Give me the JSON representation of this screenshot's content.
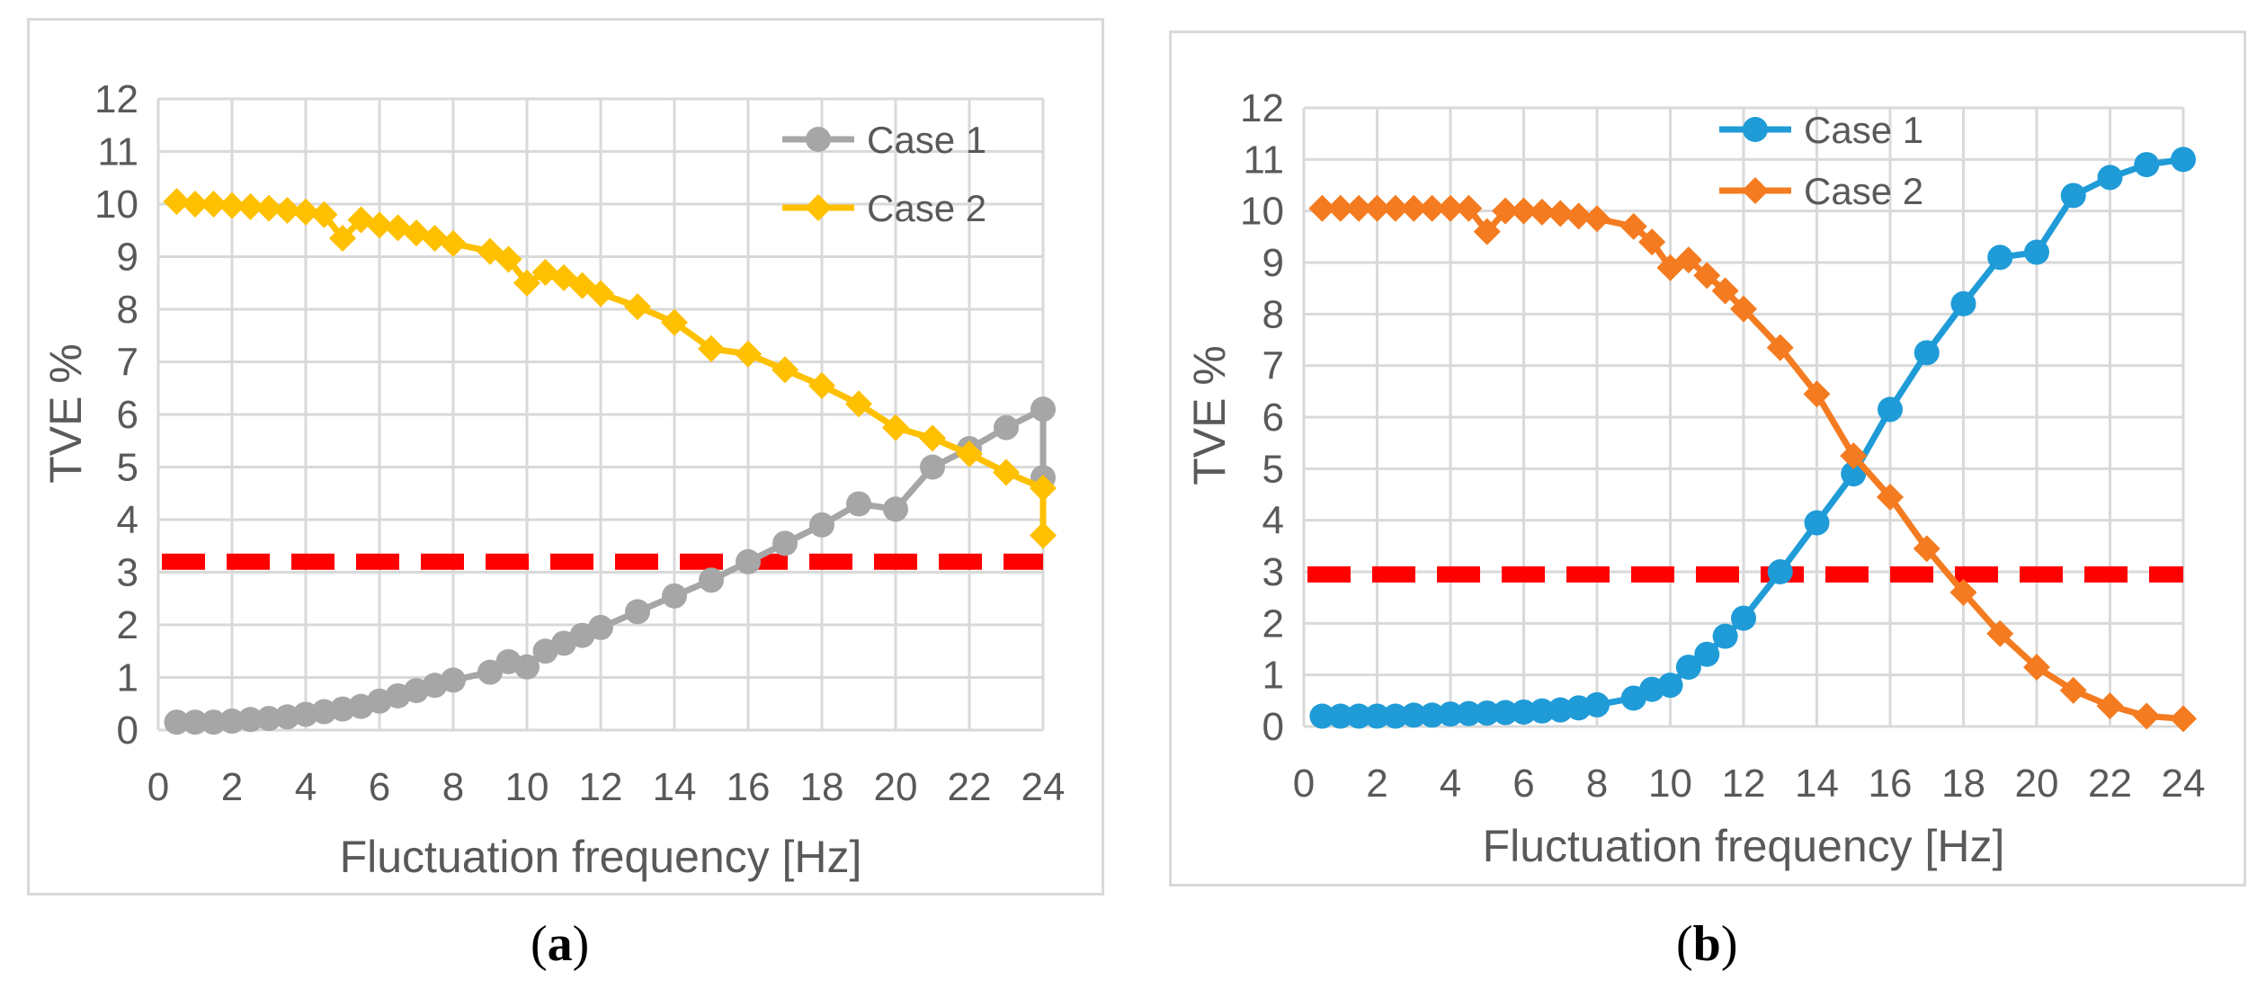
{
  "chart_data": [
    {
      "type": "line",
      "panel_label": "a",
      "xlabel": "Fluctuation frequency [Hz]",
      "ylabel": "TVE %",
      "xlim": [
        0,
        24
      ],
      "ylim": [
        0,
        12
      ],
      "xticks": [
        0,
        2,
        4,
        6,
        8,
        10,
        12,
        14,
        16,
        18,
        20,
        22,
        24
      ],
      "yticks": [
        0,
        1,
        2,
        3,
        4,
        5,
        6,
        7,
        8,
        9,
        10,
        11,
        12
      ],
      "grid": true,
      "legend": "top-right",
      "threshold": 3.2,
      "threshold_color": "#ff0000",
      "series": [
        {
          "name": "Case 1",
          "color": "#a6a6a6",
          "marker": "circle",
          "x": [
            0.5,
            1,
            1.5,
            2,
            2.5,
            3,
            3.5,
            4,
            4.5,
            5,
            5.5,
            6,
            6.5,
            7,
            7.5,
            8,
            9,
            9.5,
            10,
            10.5,
            11,
            11.5,
            12,
            13,
            14,
            15,
            16,
            17,
            18,
            19,
            20,
            21,
            22,
            23,
            24,
            24
          ],
          "y": [
            0.15,
            0.15,
            0.15,
            0.17,
            0.2,
            0.22,
            0.25,
            0.3,
            0.35,
            0.4,
            0.45,
            0.55,
            0.65,
            0.75,
            0.85,
            0.95,
            1.1,
            1.3,
            1.2,
            1.5,
            1.65,
            1.8,
            1.95,
            2.25,
            2.55,
            2.85,
            3.2,
            3.55,
            3.9,
            4.3,
            4.2,
            5.0,
            5.35,
            5.75,
            6.1,
            4.8
          ]
        },
        {
          "name": "Case 2",
          "color": "#ffc000",
          "marker": "diamond",
          "x": [
            0.5,
            1,
            1.5,
            2,
            2.5,
            3,
            3.5,
            4,
            4.5,
            5,
            5.5,
            6,
            6.5,
            7,
            7.5,
            8,
            9,
            9.5,
            10,
            10.5,
            11,
            11.5,
            12,
            13,
            14,
            15,
            16,
            17,
            18,
            19,
            20,
            21,
            22,
            23,
            24,
            24
          ],
          "y": [
            10.05,
            10.0,
            10.0,
            9.97,
            9.95,
            9.92,
            9.88,
            9.85,
            9.8,
            9.35,
            9.7,
            9.6,
            9.55,
            9.45,
            9.35,
            9.25,
            9.1,
            8.95,
            8.5,
            8.7,
            8.6,
            8.45,
            8.3,
            8.05,
            7.75,
            7.25,
            7.15,
            6.85,
            6.55,
            6.2,
            5.75,
            5.55,
            5.25,
            4.9,
            4.6,
            3.7
          ]
        }
      ]
    },
    {
      "type": "line",
      "panel_label": "b",
      "xlabel": "Fluctuation frequency [Hz]",
      "ylabel": "TVE %",
      "xlim": [
        0,
        24
      ],
      "ylim": [
        0,
        12
      ],
      "xticks": [
        0,
        2,
        4,
        6,
        8,
        10,
        12,
        14,
        16,
        18,
        20,
        22,
        24
      ],
      "yticks": [
        0,
        1,
        2,
        3,
        4,
        5,
        6,
        7,
        8,
        9,
        10,
        11,
        12
      ],
      "grid": true,
      "legend": "top",
      "threshold": 2.95,
      "threshold_color": "#ff0000",
      "series": [
        {
          "name": "Case 1",
          "color": "#1f9bd7",
          "marker": "circle",
          "x": [
            0.5,
            1,
            1.5,
            2,
            2.5,
            3,
            3.5,
            4,
            4.5,
            5,
            5.5,
            6,
            6.5,
            7,
            7.5,
            8,
            9,
            9.5,
            10,
            10.5,
            11,
            11.5,
            12,
            13,
            14,
            15,
            16,
            17,
            18,
            19,
            20,
            21,
            22,
            23,
            24
          ],
          "y": [
            0.2,
            0.2,
            0.2,
            0.2,
            0.2,
            0.22,
            0.22,
            0.24,
            0.25,
            0.26,
            0.27,
            0.28,
            0.3,
            0.32,
            0.36,
            0.42,
            0.55,
            0.72,
            0.8,
            1.15,
            1.4,
            1.75,
            2.1,
            3.0,
            3.95,
            4.9,
            6.15,
            7.25,
            8.2,
            9.1,
            9.2,
            10.3,
            10.65,
            10.9,
            11.0
          ]
        },
        {
          "name": "Case 2",
          "color": "#f47b20",
          "marker": "diamond",
          "x": [
            0.5,
            1,
            1.5,
            2,
            2.5,
            3,
            3.5,
            4,
            4.5,
            5,
            5.5,
            6,
            6.5,
            7,
            7.5,
            8,
            9,
            9.5,
            10,
            10.5,
            11,
            11.5,
            12,
            13,
            14,
            15,
            16,
            17,
            18,
            19,
            20,
            21,
            22,
            23,
            24
          ],
          "y": [
            10.05,
            10.05,
            10.05,
            10.05,
            10.05,
            10.05,
            10.05,
            10.05,
            10.05,
            9.6,
            10.0,
            10.0,
            9.98,
            9.95,
            9.9,
            9.85,
            9.7,
            9.4,
            8.9,
            9.05,
            8.75,
            8.45,
            8.1,
            7.35,
            6.45,
            5.25,
            4.45,
            3.45,
            2.6,
            1.8,
            1.15,
            0.7,
            0.4,
            0.2,
            0.15
          ]
        }
      ]
    }
  ]
}
